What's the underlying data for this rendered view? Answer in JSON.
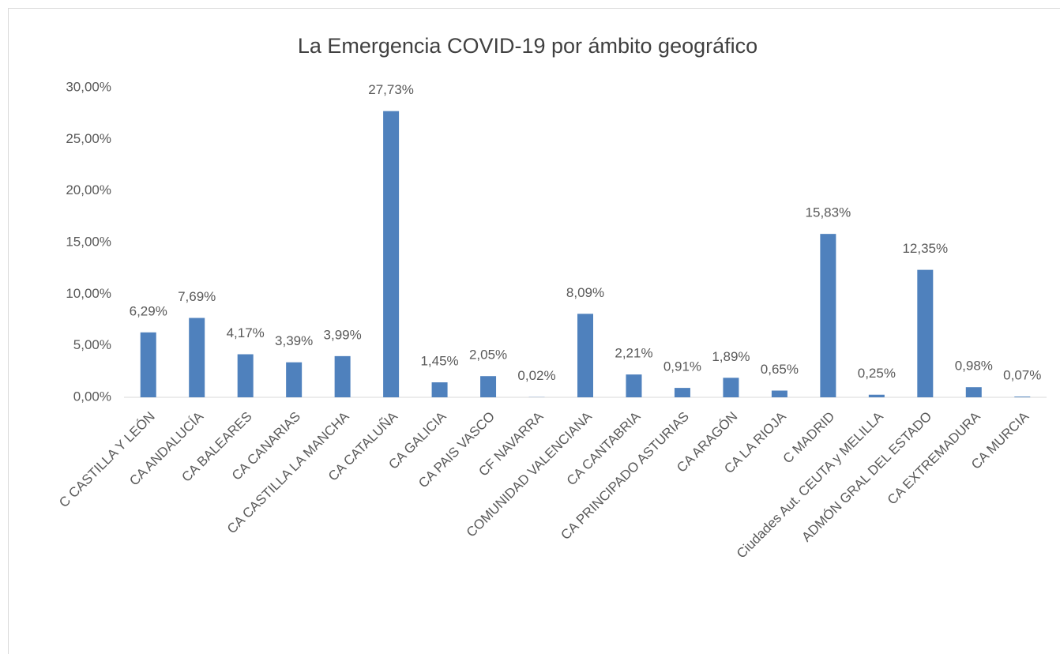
{
  "chart_data": {
    "type": "bar",
    "title": "La Emergencia COVID-19 por ámbito geográfico",
    "categories": [
      "C CASTILLA Y LEÓN",
      "CA ANDALUCÍA",
      "CA BALEARES",
      "CA CANARIAS",
      "CA CASTILLA LA MANCHA",
      "CA CATALUÑA",
      "CA GALICIA",
      "CA PAIS VASCO",
      "CF NAVARRA",
      "COMUNIDAD VALENCIANA",
      "CA CANTABRIA",
      "CA PRINCIPADO ASTURIAS",
      "CA ARAGÓN",
      "CA LA RIOJA",
      "C MADRID",
      "Ciudades Aut. CEUTA y MELILLA",
      "ADMÓN GRAL DEL ESTADO",
      "CA EXTREMADURA",
      "CA MURCIA"
    ],
    "values": [
      6.29,
      7.69,
      4.17,
      3.39,
      3.99,
      27.73,
      1.45,
      2.05,
      0.02,
      8.09,
      2.21,
      0.91,
      1.89,
      0.65,
      15.83,
      0.25,
      12.35,
      0.98,
      0.07
    ],
    "value_labels": [
      "6,29%",
      "7,69%",
      "4,17%",
      "3,39%",
      "3,99%",
      "27,73%",
      "1,45%",
      "2,05%",
      "0,02%",
      "8,09%",
      "2,21%",
      "0,91%",
      "1,89%",
      "0,65%",
      "15,83%",
      "0,25%",
      "12,35%",
      "0,98%",
      "0,07%"
    ],
    "color": "#4f81bd",
    "ylim": [
      0,
      30
    ],
    "yticks": [
      {
        "value": 0,
        "label": "0,00%"
      },
      {
        "value": 5,
        "label": "5,00%"
      },
      {
        "value": 10,
        "label": "10,00%"
      },
      {
        "value": 15,
        "label": "15,00%"
      },
      {
        "value": 20,
        "label": "20,00%"
      },
      {
        "value": 25,
        "label": "25,00%"
      },
      {
        "value": 30,
        "label": "30,00%"
      }
    ],
    "grid": false
  }
}
